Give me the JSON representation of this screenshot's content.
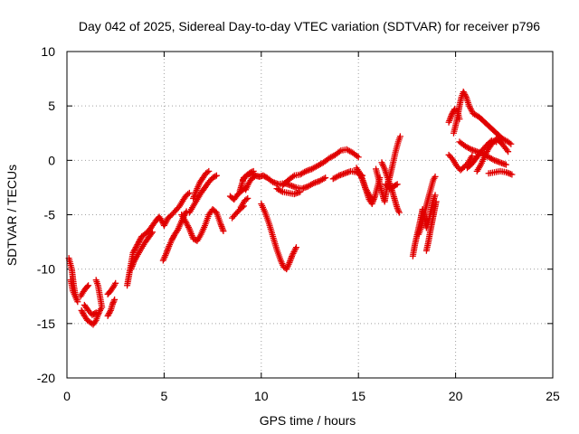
{
  "chart_data": {
    "type": "scatter",
    "title": "Day 042 of 2025, Sidereal Day-to-day VTEC variation (SDTVAR) for receiver p796",
    "xlabel": "GPS time / hours",
    "ylabel": "SDTVAR / TECUs",
    "xlim": [
      0,
      25
    ],
    "ylim": [
      -20,
      10
    ],
    "xticks": [
      "0",
      "5",
      "10",
      "15",
      "20",
      "25"
    ],
    "yticks": [
      "10",
      "5",
      "0",
      "-5",
      "-10",
      "-15",
      "-20"
    ],
    "grid": true,
    "marker": "plus",
    "color": "#e00000",
    "series": [
      {
        "values": [
          [
            0.1,
            -9.0
          ],
          [
            0.25,
            -10.0
          ],
          [
            0.35,
            -11.5
          ],
          [
            0.45,
            -12.5
          ],
          [
            0.55,
            -13.0
          ],
          [
            0.3,
            -12.0
          ],
          [
            0.2,
            -11.0
          ]
        ]
      },
      {
        "values": [
          [
            0.7,
            -12.5
          ],
          [
            0.8,
            -12.2
          ],
          [
            0.95,
            -11.8
          ],
          [
            1.1,
            -11.5
          ]
        ]
      },
      {
        "values": [
          [
            0.75,
            -13.8
          ],
          [
            0.9,
            -14.3
          ],
          [
            1.05,
            -14.7
          ],
          [
            1.2,
            -14.9
          ],
          [
            1.35,
            -15.1
          ],
          [
            1.5,
            -14.7
          ],
          [
            1.6,
            -14.2
          ],
          [
            1.7,
            -13.8
          ],
          [
            1.8,
            -13.5
          ],
          [
            1.7,
            -12.5
          ],
          [
            1.6,
            -11.5
          ],
          [
            1.5,
            -11.0
          ]
        ]
      },
      {
        "values": [
          [
            0.9,
            -13.3
          ],
          [
            1.1,
            -13.8
          ],
          [
            1.3,
            -14.2
          ],
          [
            1.5,
            -14.0
          ]
        ]
      },
      {
        "values": [
          [
            2.1,
            -14.3
          ],
          [
            2.25,
            -13.8
          ],
          [
            2.35,
            -13.2
          ],
          [
            2.45,
            -12.8
          ]
        ]
      },
      {
        "values": [
          [
            2.1,
            -12.3
          ],
          [
            2.25,
            -12.0
          ],
          [
            2.4,
            -11.6
          ],
          [
            2.5,
            -11.3
          ]
        ]
      },
      {
        "values": [
          [
            3.1,
            -11.5
          ],
          [
            3.2,
            -10.5
          ],
          [
            3.3,
            -9.5
          ],
          [
            3.4,
            -8.5
          ],
          [
            3.55,
            -8.0
          ],
          [
            3.7,
            -7.5
          ],
          [
            3.85,
            -7.0
          ],
          [
            4.0,
            -6.8
          ],
          [
            4.2,
            -6.5
          ],
          [
            4.4,
            -6.0
          ],
          [
            4.6,
            -5.5
          ],
          [
            4.75,
            -5.2
          ],
          [
            4.9,
            -5.6
          ],
          [
            5.0,
            -6.0
          ],
          [
            5.2,
            -5.3
          ],
          [
            5.4,
            -5.0
          ],
          [
            5.6,
            -4.6
          ],
          [
            5.8,
            -4.2
          ],
          [
            6.0,
            -3.6
          ],
          [
            6.15,
            -3.2
          ],
          [
            6.3,
            -3.0
          ]
        ]
      },
      {
        "values": [
          [
            3.3,
            -10.0
          ],
          [
            3.45,
            -9.3
          ],
          [
            3.6,
            -8.8
          ],
          [
            3.8,
            -8.2
          ],
          [
            4.0,
            -7.6
          ],
          [
            4.2,
            -7.1
          ],
          [
            4.4,
            -6.6
          ]
        ]
      },
      {
        "values": [
          [
            4.95,
            -9.2
          ],
          [
            5.1,
            -8.6
          ],
          [
            5.25,
            -7.9
          ],
          [
            5.4,
            -7.3
          ],
          [
            5.55,
            -6.8
          ],
          [
            5.7,
            -6.4
          ],
          [
            5.85,
            -5.8
          ],
          [
            6.0,
            -5.2
          ],
          [
            6.15,
            -4.7
          ]
        ]
      },
      {
        "values": [
          [
            5.9,
            -5.0
          ],
          [
            6.1,
            -5.6
          ],
          [
            6.3,
            -6.3
          ],
          [
            6.5,
            -7.2
          ],
          [
            6.7,
            -7.4
          ],
          [
            6.9,
            -6.8
          ],
          [
            7.1,
            -6.0
          ],
          [
            7.3,
            -5.0
          ],
          [
            7.5,
            -4.5
          ],
          [
            7.7,
            -4.8
          ],
          [
            7.9,
            -5.8
          ],
          [
            8.05,
            -6.5
          ]
        ]
      },
      {
        "values": [
          [
            6.3,
            -4.8
          ],
          [
            6.5,
            -4.2
          ],
          [
            6.7,
            -3.6
          ],
          [
            6.9,
            -3.0
          ],
          [
            7.1,
            -2.5
          ],
          [
            7.3,
            -2.0
          ],
          [
            7.5,
            -1.6
          ],
          [
            7.7,
            -1.4
          ]
        ]
      },
      {
        "values": [
          [
            6.5,
            -3.5
          ],
          [
            6.7,
            -2.6
          ],
          [
            6.85,
            -2.0
          ],
          [
            7.0,
            -1.6
          ],
          [
            7.15,
            -1.2
          ],
          [
            7.3,
            -1.0
          ]
        ]
      },
      {
        "values": [
          [
            8.4,
            -3.3
          ],
          [
            8.6,
            -3.6
          ],
          [
            8.8,
            -3.1
          ],
          [
            9.0,
            -2.8
          ],
          [
            9.2,
            -2.5
          ]
        ]
      },
      {
        "values": [
          [
            8.9,
            -2.8
          ],
          [
            9.0,
            -2.2
          ],
          [
            9.1,
            -1.6
          ],
          [
            9.3,
            -1.3
          ],
          [
            9.5,
            -1.2
          ],
          [
            9.7,
            -1.4
          ],
          [
            9.9,
            -1.5
          ],
          [
            10.1,
            -1.4
          ],
          [
            10.3,
            -1.6
          ],
          [
            10.6,
            -2.0
          ],
          [
            10.9,
            -2.2
          ],
          [
            11.2,
            -2.1
          ],
          [
            11.5,
            -2.3
          ],
          [
            11.8,
            -2.5
          ],
          [
            12.1,
            -2.6
          ],
          [
            12.4,
            -2.4
          ],
          [
            12.7,
            -2.1
          ],
          [
            13.0,
            -1.9
          ],
          [
            13.3,
            -1.6
          ]
        ]
      },
      {
        "values": [
          [
            9.05,
            -1.8
          ],
          [
            9.25,
            -1.4
          ],
          [
            9.45,
            -1.1
          ],
          [
            9.6,
            -1.0
          ]
        ]
      },
      {
        "values": [
          [
            8.95,
            -4.3
          ],
          [
            9.05,
            -4.0
          ],
          [
            9.15,
            -3.7
          ],
          [
            9.3,
            -3.5
          ]
        ]
      },
      {
        "values": [
          [
            8.5,
            -5.3
          ],
          [
            8.7,
            -4.9
          ],
          [
            8.9,
            -4.5
          ],
          [
            9.1,
            -4.2
          ]
        ]
      },
      {
        "values": [
          [
            9.2,
            -2.7
          ],
          [
            9.35,
            -2.1
          ],
          [
            9.5,
            -1.7
          ],
          [
            9.65,
            -1.5
          ]
        ]
      },
      {
        "values": [
          [
            10.0,
            -4.0
          ],
          [
            10.2,
            -4.8
          ],
          [
            10.4,
            -5.8
          ],
          [
            10.6,
            -7.0
          ],
          [
            10.8,
            -8.2
          ],
          [
            11.0,
            -9.2
          ],
          [
            11.15,
            -9.8
          ],
          [
            11.3,
            -10.0
          ],
          [
            11.45,
            -9.4
          ],
          [
            11.6,
            -8.7
          ],
          [
            11.8,
            -8.0
          ]
        ]
      },
      {
        "values": [
          [
            11.1,
            -2.3
          ],
          [
            11.4,
            -1.8
          ],
          [
            11.7,
            -1.4
          ],
          [
            12.0,
            -1.3
          ],
          [
            12.3,
            -1.0
          ],
          [
            12.6,
            -0.8
          ],
          [
            12.9,
            -0.5
          ],
          [
            13.2,
            -0.2
          ],
          [
            13.5,
            0.2
          ],
          [
            13.8,
            0.5
          ],
          [
            14.1,
            0.9
          ],
          [
            14.4,
            1.0
          ],
          [
            14.7,
            0.7
          ],
          [
            15.0,
            0.3
          ]
        ]
      },
      {
        "values": [
          [
            10.8,
            -2.6
          ],
          [
            11.1,
            -2.9
          ],
          [
            11.4,
            -3.0
          ],
          [
            11.7,
            -3.1
          ],
          [
            12.0,
            -2.9
          ]
        ]
      },
      {
        "values": [
          [
            13.7,
            -1.7
          ],
          [
            14.0,
            -1.4
          ],
          [
            14.3,
            -1.2
          ],
          [
            14.6,
            -1.0
          ],
          [
            14.9,
            -1.1
          ],
          [
            15.2,
            -1.4
          ]
        ]
      },
      {
        "values": [
          [
            14.9,
            -0.7
          ],
          [
            15.1,
            -1.3
          ],
          [
            15.25,
            -2.0
          ],
          [
            15.4,
            -2.8
          ],
          [
            15.55,
            -3.6
          ],
          [
            15.7,
            -4.0
          ],
          [
            15.85,
            -3.3
          ],
          [
            16.0,
            -2.3
          ],
          [
            16.1,
            -1.6
          ]
        ]
      },
      {
        "values": [
          [
            15.0,
            -1.0
          ],
          [
            15.2,
            -1.7
          ],
          [
            15.35,
            -2.5
          ],
          [
            15.55,
            -3.2
          ],
          [
            15.75,
            -3.6
          ]
        ]
      },
      {
        "values": [
          [
            15.9,
            -0.8
          ],
          [
            16.05,
            -1.8
          ],
          [
            16.2,
            -2.9
          ],
          [
            16.35,
            -3.8
          ],
          [
            16.45,
            -2.7
          ],
          [
            16.6,
            -1.6
          ],
          [
            16.75,
            -0.5
          ],
          [
            16.9,
            0.7
          ],
          [
            17.05,
            1.7
          ],
          [
            17.15,
            2.2
          ]
        ]
      },
      {
        "values": [
          [
            16.2,
            -0.2
          ],
          [
            16.35,
            -0.8
          ],
          [
            16.5,
            -1.6
          ],
          [
            16.7,
            -2.6
          ],
          [
            16.85,
            -3.5
          ],
          [
            17.0,
            -4.4
          ],
          [
            17.1,
            -4.8
          ]
        ]
      },
      {
        "values": [
          [
            16.4,
            -2.2
          ],
          [
            16.6,
            -2.6
          ],
          [
            16.8,
            -2.4
          ],
          [
            17.0,
            -2.2
          ]
        ]
      },
      {
        "values": [
          [
            17.8,
            -8.8
          ],
          [
            17.9,
            -7.8
          ],
          [
            18.0,
            -7.0
          ],
          [
            18.1,
            -6.2
          ],
          [
            18.2,
            -5.4
          ],
          [
            18.3,
            -4.5
          ],
          [
            18.4,
            -5.2
          ],
          [
            18.5,
            -6.2
          ],
          [
            18.65,
            -5.3
          ],
          [
            18.8,
            -4.0
          ],
          [
            18.95,
            -3.2
          ]
        ]
      },
      {
        "values": [
          [
            18.1,
            -6.8
          ],
          [
            18.25,
            -6.0
          ],
          [
            18.4,
            -4.8
          ],
          [
            18.55,
            -3.8
          ],
          [
            18.7,
            -2.8
          ],
          [
            18.85,
            -1.8
          ],
          [
            18.95,
            -1.5
          ]
        ]
      },
      {
        "values": [
          [
            18.5,
            -8.3
          ],
          [
            18.6,
            -7.5
          ],
          [
            18.7,
            -6.5
          ],
          [
            18.8,
            -5.6
          ],
          [
            18.9,
            -4.7
          ],
          [
            19.0,
            -3.8
          ]
        ]
      },
      {
        "values": [
          [
            19.65,
            0.5
          ],
          [
            19.85,
            0.1
          ],
          [
            20.05,
            -0.5
          ],
          [
            20.25,
            -0.9
          ],
          [
            20.45,
            -0.6
          ],
          [
            20.65,
            -0.2
          ],
          [
            20.85,
            0.4
          ]
        ]
      },
      {
        "values": [
          [
            19.9,
            2.5
          ],
          [
            20.0,
            3.2
          ],
          [
            20.1,
            4.0
          ],
          [
            20.2,
            5.0
          ],
          [
            20.3,
            5.8
          ],
          [
            20.4,
            6.3
          ],
          [
            20.55,
            5.8
          ],
          [
            20.7,
            5.0
          ],
          [
            20.9,
            4.3
          ],
          [
            21.2,
            4.0
          ],
          [
            21.5,
            3.5
          ],
          [
            21.8,
            3.0
          ],
          [
            22.1,
            2.5
          ],
          [
            22.4,
            2.0
          ],
          [
            22.7,
            1.7
          ],
          [
            22.85,
            1.5
          ]
        ]
      },
      {
        "values": [
          [
            19.65,
            3.5
          ],
          [
            19.8,
            4.2
          ],
          [
            19.95,
            4.7
          ],
          [
            20.1,
            4.5
          ],
          [
            20.2,
            3.8
          ]
        ]
      },
      {
        "values": [
          [
            20.2,
            1.7
          ],
          [
            20.5,
            1.3
          ],
          [
            20.8,
            1.0
          ],
          [
            21.1,
            0.8
          ],
          [
            21.4,
            0.6
          ],
          [
            21.7,
            0.3
          ],
          [
            22.0,
            0.0
          ],
          [
            22.3,
            -0.2
          ],
          [
            22.6,
            -0.4
          ]
        ]
      },
      {
        "values": [
          [
            20.6,
            -0.7
          ],
          [
            20.85,
            -0.3
          ],
          [
            21.1,
            0.3
          ],
          [
            21.35,
            0.9
          ],
          [
            21.6,
            1.4
          ],
          [
            21.85,
            1.8
          ],
          [
            22.1,
            1.7
          ]
        ]
      },
      {
        "values": [
          [
            21.1,
            -1.0
          ],
          [
            21.3,
            -0.4
          ],
          [
            21.5,
            0.4
          ],
          [
            21.7,
            1.1
          ],
          [
            21.9,
            1.6
          ],
          [
            22.1,
            2.0
          ],
          [
            22.4,
            1.5
          ],
          [
            22.7,
            0.8
          ]
        ]
      },
      {
        "values": [
          [
            21.7,
            -1.2
          ],
          [
            22.0,
            -1.1
          ],
          [
            22.3,
            -1.0
          ],
          [
            22.6,
            -1.1
          ],
          [
            22.9,
            -1.3
          ]
        ]
      }
    ]
  }
}
